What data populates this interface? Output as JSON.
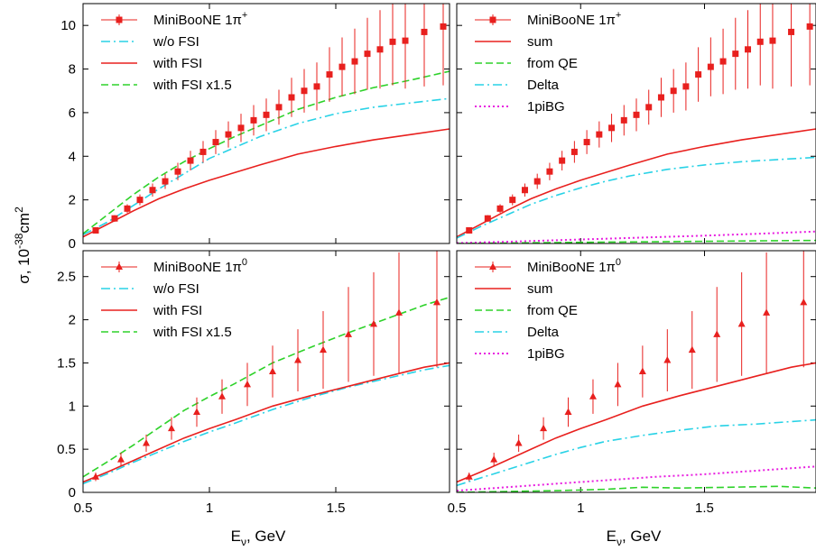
{
  "figure": {
    "ylabel_main": "σ, 10",
    "ylabel_exp": "-38",
    "ylabel_unit": "cm",
    "ylabel_unit_exp": "2",
    "xlabel_main": "E",
    "xlabel_sub": "ν",
    "xlabel_unit": ", GeV"
  },
  "chart_data": [
    {
      "type": "line",
      "panel": "top-left",
      "xlim": [
        0.5,
        1.95
      ],
      "ylim": [
        0,
        11
      ],
      "xticks": [
        0.5,
        1,
        1.5
      ],
      "xtick_labels": [
        "",
        "",
        ""
      ],
      "yticks": [
        0,
        2,
        4,
        6,
        8,
        10
      ],
      "ytick_labels": [
        "0",
        "2",
        "4",
        "6",
        "8",
        "10"
      ],
      "legend": "top-left",
      "data_series": {
        "name": "MiniBooNE 1π⁺",
        "name_main": "MiniBooNE 1π",
        "name_sup": "+",
        "marker": "square",
        "color": "#e8201e",
        "x": [
          0.55,
          0.625,
          0.675,
          0.725,
          0.775,
          0.825,
          0.875,
          0.925,
          0.975,
          1.025,
          1.075,
          1.125,
          1.175,
          1.225,
          1.275,
          1.325,
          1.375,
          1.425,
          1.475,
          1.525,
          1.575,
          1.625,
          1.675,
          1.725,
          1.775,
          1.85,
          1.925
        ],
        "y": [
          0.6,
          1.15,
          1.6,
          2.0,
          2.45,
          2.85,
          3.3,
          3.8,
          4.2,
          4.65,
          5.0,
          5.3,
          5.65,
          5.9,
          6.25,
          6.7,
          7.0,
          7.2,
          7.75,
          8.1,
          8.35,
          8.7,
          8.9,
          9.25,
          9.3,
          9.7,
          9.95
        ],
        "err": [
          0.1,
          0.15,
          0.2,
          0.25,
          0.3,
          0.35,
          0.4,
          0.45,
          0.5,
          0.55,
          0.6,
          0.65,
          0.7,
          0.75,
          0.8,
          0.9,
          1.0,
          1.1,
          1.25,
          1.35,
          1.5,
          1.65,
          1.8,
          2.0,
          2.2,
          2.5,
          2.7
        ]
      },
      "series": [
        {
          "name": "w/o FSI",
          "color": "#28d2e6",
          "dash": "dashdot",
          "x": [
            0.5,
            0.6,
            0.7,
            0.8,
            0.9,
            1.0,
            1.2,
            1.35,
            1.5,
            1.65,
            1.8,
            1.95
          ],
          "y": [
            0.4,
            1.0,
            1.75,
            2.5,
            3.2,
            3.9,
            4.9,
            5.5,
            5.95,
            6.25,
            6.45,
            6.65
          ]
        },
        {
          "name": "with FSI",
          "color": "#e8201e",
          "dash": "solid",
          "x": [
            0.5,
            0.6,
            0.7,
            0.8,
            0.9,
            1.0,
            1.1,
            1.2,
            1.35,
            1.5,
            1.65,
            1.8,
            1.95
          ],
          "y": [
            0.3,
            0.9,
            1.5,
            2.05,
            2.5,
            2.9,
            3.25,
            3.6,
            4.1,
            4.45,
            4.75,
            5.0,
            5.25
          ]
        },
        {
          "name": "with FSI x1.5",
          "color": "#2ed22a",
          "dash": "dashed",
          "x": [
            0.5,
            0.6,
            0.7,
            0.8,
            0.9,
            1.0,
            1.1,
            1.2,
            1.35,
            1.5,
            1.65,
            1.8,
            1.95
          ],
          "y": [
            0.45,
            1.35,
            2.25,
            3.05,
            3.75,
            4.35,
            4.9,
            5.4,
            6.15,
            6.7,
            7.15,
            7.5,
            7.9
          ]
        }
      ]
    },
    {
      "type": "line",
      "panel": "top-right",
      "xlim": [
        0.5,
        1.95
      ],
      "ylim": [
        0,
        11
      ],
      "xticks": [
        0.5,
        1,
        1.5
      ],
      "xtick_labels": [
        "",
        "",
        ""
      ],
      "yticks": [
        0,
        2,
        4,
        6,
        8,
        10
      ],
      "ytick_labels": [
        "",
        "",
        "",
        "",
        "",
        ""
      ],
      "legend": "top-left",
      "data_series": {
        "name": "MiniBooNE 1π⁺",
        "name_main": "MiniBooNE 1π",
        "name_sup": "+",
        "marker": "square",
        "color": "#e8201e",
        "x": [
          0.55,
          0.625,
          0.675,
          0.725,
          0.775,
          0.825,
          0.875,
          0.925,
          0.975,
          1.025,
          1.075,
          1.125,
          1.175,
          1.225,
          1.275,
          1.325,
          1.375,
          1.425,
          1.475,
          1.525,
          1.575,
          1.625,
          1.675,
          1.725,
          1.775,
          1.85,
          1.925
        ],
        "y": [
          0.6,
          1.15,
          1.6,
          2.0,
          2.45,
          2.85,
          3.3,
          3.8,
          4.2,
          4.65,
          5.0,
          5.3,
          5.65,
          5.9,
          6.25,
          6.7,
          7.0,
          7.2,
          7.75,
          8.1,
          8.35,
          8.7,
          8.9,
          9.25,
          9.3,
          9.7,
          9.95
        ],
        "err": [
          0.1,
          0.15,
          0.2,
          0.25,
          0.3,
          0.35,
          0.4,
          0.45,
          0.5,
          0.55,
          0.6,
          0.65,
          0.7,
          0.75,
          0.8,
          0.9,
          1.0,
          1.1,
          1.25,
          1.35,
          1.5,
          1.65,
          1.8,
          2.0,
          2.2,
          2.5,
          2.7
        ]
      },
      "series": [
        {
          "name": "sum",
          "color": "#e8201e",
          "dash": "solid",
          "x": [
            0.5,
            0.6,
            0.7,
            0.8,
            0.9,
            1.0,
            1.1,
            1.2,
            1.35,
            1.5,
            1.65,
            1.8,
            1.95
          ],
          "y": [
            0.3,
            0.9,
            1.5,
            2.05,
            2.5,
            2.9,
            3.25,
            3.6,
            4.1,
            4.45,
            4.75,
            5.0,
            5.25
          ]
        },
        {
          "name": "from QE",
          "color": "#2ed22a",
          "dash": "dashed",
          "x": [
            0.5,
            0.7,
            0.9,
            1.1,
            1.3,
            1.5,
            1.7,
            1.95
          ],
          "y": [
            0.0,
            0.02,
            0.04,
            0.06,
            0.08,
            0.1,
            0.12,
            0.14
          ]
        },
        {
          "name": "Delta",
          "color": "#28d2e6",
          "dash": "dashdot",
          "x": [
            0.5,
            0.6,
            0.7,
            0.8,
            0.9,
            1.0,
            1.1,
            1.2,
            1.35,
            1.5,
            1.65,
            1.8,
            1.95
          ],
          "y": [
            0.25,
            0.8,
            1.3,
            1.8,
            2.2,
            2.55,
            2.85,
            3.1,
            3.4,
            3.6,
            3.75,
            3.85,
            3.95
          ]
        },
        {
          "name": "1piBG",
          "color": "#e81ee0",
          "dash": "dotted",
          "x": [
            0.5,
            0.7,
            0.9,
            1.1,
            1.3,
            1.5,
            1.7,
            1.95
          ],
          "y": [
            0.02,
            0.08,
            0.15,
            0.22,
            0.29,
            0.36,
            0.44,
            0.55
          ]
        }
      ]
    },
    {
      "type": "line",
      "panel": "bottom-left",
      "xlim": [
        0.5,
        1.95
      ],
      "ylim": [
        0,
        2.8
      ],
      "xticks": [
        0.5,
        1,
        1.5
      ],
      "xtick_labels": [
        "0.5",
        "1",
        "1.5"
      ],
      "yticks": [
        0,
        0.5,
        1,
        1.5,
        2,
        2.5
      ],
      "ytick_labels": [
        "0",
        "0.5",
        "1",
        "1.5",
        "2",
        "2.5"
      ],
      "legend": "top-left",
      "data_series": {
        "name": "MiniBooNE 1π⁰",
        "name_main": "MiniBooNE 1π",
        "name_sup": "0",
        "marker": "triangle",
        "color": "#e8201e",
        "x": [
          0.55,
          0.65,
          0.75,
          0.85,
          0.95,
          1.05,
          1.15,
          1.25,
          1.35,
          1.45,
          1.55,
          1.65,
          1.75,
          1.9
        ],
        "y": [
          0.18,
          0.38,
          0.57,
          0.74,
          0.93,
          1.11,
          1.25,
          1.4,
          1.53,
          1.65,
          1.83,
          1.95,
          2.08,
          2.2
        ],
        "err": [
          0.05,
          0.08,
          0.1,
          0.13,
          0.17,
          0.2,
          0.25,
          0.3,
          0.36,
          0.45,
          0.55,
          0.6,
          0.7,
          0.75
        ]
      },
      "series": [
        {
          "name": "w/o FSI",
          "color": "#28d2e6",
          "dash": "dashdot",
          "x": [
            0.5,
            0.6,
            0.7,
            0.8,
            0.9,
            1.0,
            1.1,
            1.25,
            1.4,
            1.55,
            1.7,
            1.85,
            1.95
          ],
          "y": [
            0.1,
            0.22,
            0.35,
            0.47,
            0.59,
            0.7,
            0.8,
            0.96,
            1.1,
            1.22,
            1.32,
            1.42,
            1.47
          ]
        },
        {
          "name": "with FSI",
          "color": "#e8201e",
          "dash": "solid",
          "x": [
            0.5,
            0.6,
            0.7,
            0.8,
            0.9,
            1.0,
            1.1,
            1.25,
            1.4,
            1.55,
            1.7,
            1.85,
            1.95
          ],
          "y": [
            0.12,
            0.24,
            0.37,
            0.5,
            0.63,
            0.74,
            0.84,
            1.0,
            1.12,
            1.23,
            1.34,
            1.45,
            1.5
          ]
        },
        {
          "name": "with FSI x1.5",
          "color": "#2ed22a",
          "dash": "dashed",
          "x": [
            0.5,
            0.6,
            0.7,
            0.8,
            0.9,
            1.0,
            1.1,
            1.25,
            1.4,
            1.55,
            1.7,
            1.85,
            1.95
          ],
          "y": [
            0.18,
            0.36,
            0.55,
            0.75,
            0.95,
            1.11,
            1.26,
            1.5,
            1.68,
            1.85,
            2.01,
            2.17,
            2.26
          ]
        }
      ]
    },
    {
      "type": "line",
      "panel": "bottom-right",
      "xlim": [
        0.5,
        1.95
      ],
      "ylim": [
        0,
        2.8
      ],
      "xticks": [
        0.5,
        1,
        1.5
      ],
      "xtick_labels": [
        "0.5",
        "1",
        "1.5"
      ],
      "yticks": [
        0,
        0.5,
        1,
        1.5,
        2,
        2.5
      ],
      "ytick_labels": [
        "",
        "",
        "",
        "",
        "",
        ""
      ],
      "legend": "top-left",
      "data_series": {
        "name": "MiniBooNE 1π⁰",
        "name_main": "MiniBooNE 1π",
        "name_sup": "0",
        "marker": "triangle",
        "color": "#e8201e",
        "x": [
          0.55,
          0.65,
          0.75,
          0.85,
          0.95,
          1.05,
          1.15,
          1.25,
          1.35,
          1.45,
          1.55,
          1.65,
          1.75,
          1.9
        ],
        "y": [
          0.18,
          0.38,
          0.57,
          0.74,
          0.93,
          1.11,
          1.25,
          1.4,
          1.53,
          1.65,
          1.83,
          1.95,
          2.08,
          2.2
        ],
        "err": [
          0.05,
          0.08,
          0.1,
          0.13,
          0.17,
          0.2,
          0.25,
          0.3,
          0.36,
          0.45,
          0.55,
          0.6,
          0.7,
          0.75
        ]
      },
      "series": [
        {
          "name": "sum",
          "color": "#e8201e",
          "dash": "solid",
          "x": [
            0.5,
            0.6,
            0.7,
            0.8,
            0.9,
            1.0,
            1.1,
            1.25,
            1.4,
            1.55,
            1.7,
            1.85,
            1.95
          ],
          "y": [
            0.12,
            0.24,
            0.37,
            0.5,
            0.63,
            0.74,
            0.84,
            1.0,
            1.12,
            1.23,
            1.34,
            1.45,
            1.5
          ]
        },
        {
          "name": "from QE",
          "color": "#2ed22a",
          "dash": "dashed",
          "x": [
            0.5,
            0.7,
            0.9,
            1.1,
            1.25,
            1.4,
            1.6,
            1.8,
            1.95
          ],
          "y": [
            0.0,
            0.01,
            0.02,
            0.035,
            0.06,
            0.05,
            0.06,
            0.07,
            0.05
          ]
        },
        {
          "name": "Delta",
          "color": "#28d2e6",
          "dash": "dashdot",
          "x": [
            0.5,
            0.6,
            0.7,
            0.8,
            0.9,
            1.0,
            1.1,
            1.25,
            1.4,
            1.55,
            1.7,
            1.85,
            1.95
          ],
          "y": [
            0.08,
            0.17,
            0.26,
            0.35,
            0.44,
            0.52,
            0.59,
            0.66,
            0.72,
            0.77,
            0.79,
            0.82,
            0.84
          ]
        },
        {
          "name": "1piBG",
          "color": "#e81ee0",
          "dash": "dotted",
          "x": [
            0.5,
            0.7,
            0.9,
            1.1,
            1.3,
            1.5,
            1.7,
            1.95
          ],
          "y": [
            0.02,
            0.06,
            0.1,
            0.14,
            0.18,
            0.21,
            0.25,
            0.3
          ]
        }
      ]
    }
  ]
}
